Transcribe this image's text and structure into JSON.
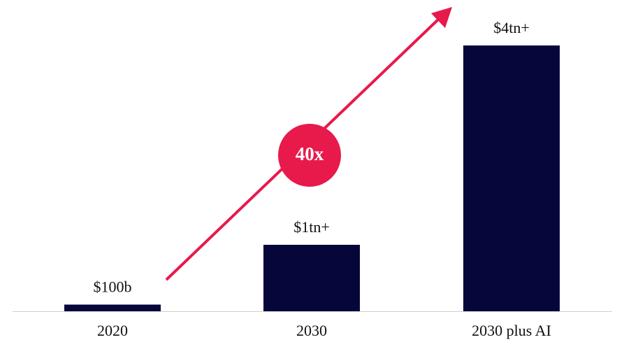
{
  "chart_data": {
    "type": "bar",
    "categories": [
      "2020",
      "2030",
      "2030 plus AI"
    ],
    "values": [
      100000000000,
      1000000000000,
      4000000000000
    ],
    "value_labels": [
      "$100b",
      "$1tn+",
      "$4tn+"
    ],
    "color": "#06063b",
    "annotation": {
      "text": "40x",
      "color": "#e8194b"
    }
  }
}
